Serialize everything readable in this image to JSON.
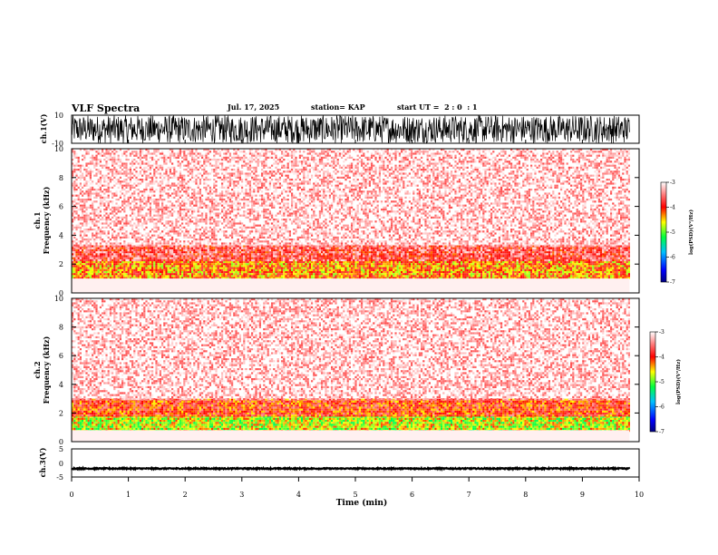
{
  "header": {
    "title": "VLF Spectra",
    "date": "Jul. 17, 2025",
    "station": "station= KAP",
    "start": "start UT =  2 : 0  : 1"
  },
  "chart_data": [
    {
      "type": "line",
      "panel": "waveform-ch1",
      "ylabel": "ch.1(V)",
      "ylim": [
        -10,
        10
      ],
      "yticks": [
        10,
        -10
      ],
      "xlim": [
        0,
        10
      ],
      "amplitude_range": [
        -10,
        10
      ],
      "data_xlim": [
        0,
        9.83
      ]
    },
    {
      "type": "heatmap",
      "panel": "spectrogram-ch1",
      "ylabel_line1": "ch.1",
      "ylabel_line2": "Frequency (kHz)",
      "ylim": [
        0,
        10
      ],
      "yticks": [
        0,
        2,
        4,
        6,
        8,
        10
      ],
      "xlim": [
        0,
        10
      ],
      "data_xlim": [
        0,
        9.83
      ],
      "bands_khz": [
        {
          "from": 1.0,
          "to": 2.2,
          "level": -4.3
        },
        {
          "from": 2.2,
          "to": 3.3,
          "level": -3.7
        },
        {
          "from": 3.3,
          "to": 10,
          "level": -3.1
        }
      ],
      "colorbar": {
        "label": "log(PSD)(V²/Hz)",
        "ticks": [
          -3,
          -4,
          -5,
          -6,
          -7
        ],
        "range": [
          -7,
          -3
        ]
      }
    },
    {
      "type": "heatmap",
      "panel": "spectrogram-ch2",
      "ylabel_line1": "ch.2",
      "ylabel_line2": "Frequency (kHz)",
      "ylim": [
        0,
        10
      ],
      "yticks": [
        0,
        2,
        4,
        6,
        8,
        10
      ],
      "xlim": [
        0,
        10
      ],
      "data_xlim": [
        0,
        9.83
      ],
      "bands_khz": [
        {
          "from": 0.8,
          "to": 1.8,
          "level": -4.7
        },
        {
          "from": 1.8,
          "to": 3.0,
          "level": -4.0
        },
        {
          "from": 3.0,
          "to": 10,
          "level": -3.1
        }
      ],
      "colorbar": {
        "label": "log(PSD)(V²/Hz)",
        "ticks": [
          -3,
          -4,
          -5,
          -6,
          -7
        ],
        "range": [
          -7,
          -3
        ]
      }
    },
    {
      "type": "line",
      "panel": "waveform-ch3",
      "ylabel": "ch.3(V)",
      "ylim": [
        -5,
        5
      ],
      "yticks": [
        5,
        0,
        -5
      ],
      "xlim": [
        0,
        10
      ],
      "xticks": [
        0,
        1,
        2,
        3,
        4,
        5,
        6,
        7,
        8,
        9,
        10
      ],
      "xlabel": "Time (min)",
      "signal_level": -2.0,
      "amplitude_range": [
        -2.2,
        -1.8
      ],
      "data_xlim": [
        0,
        9.83
      ]
    }
  ]
}
